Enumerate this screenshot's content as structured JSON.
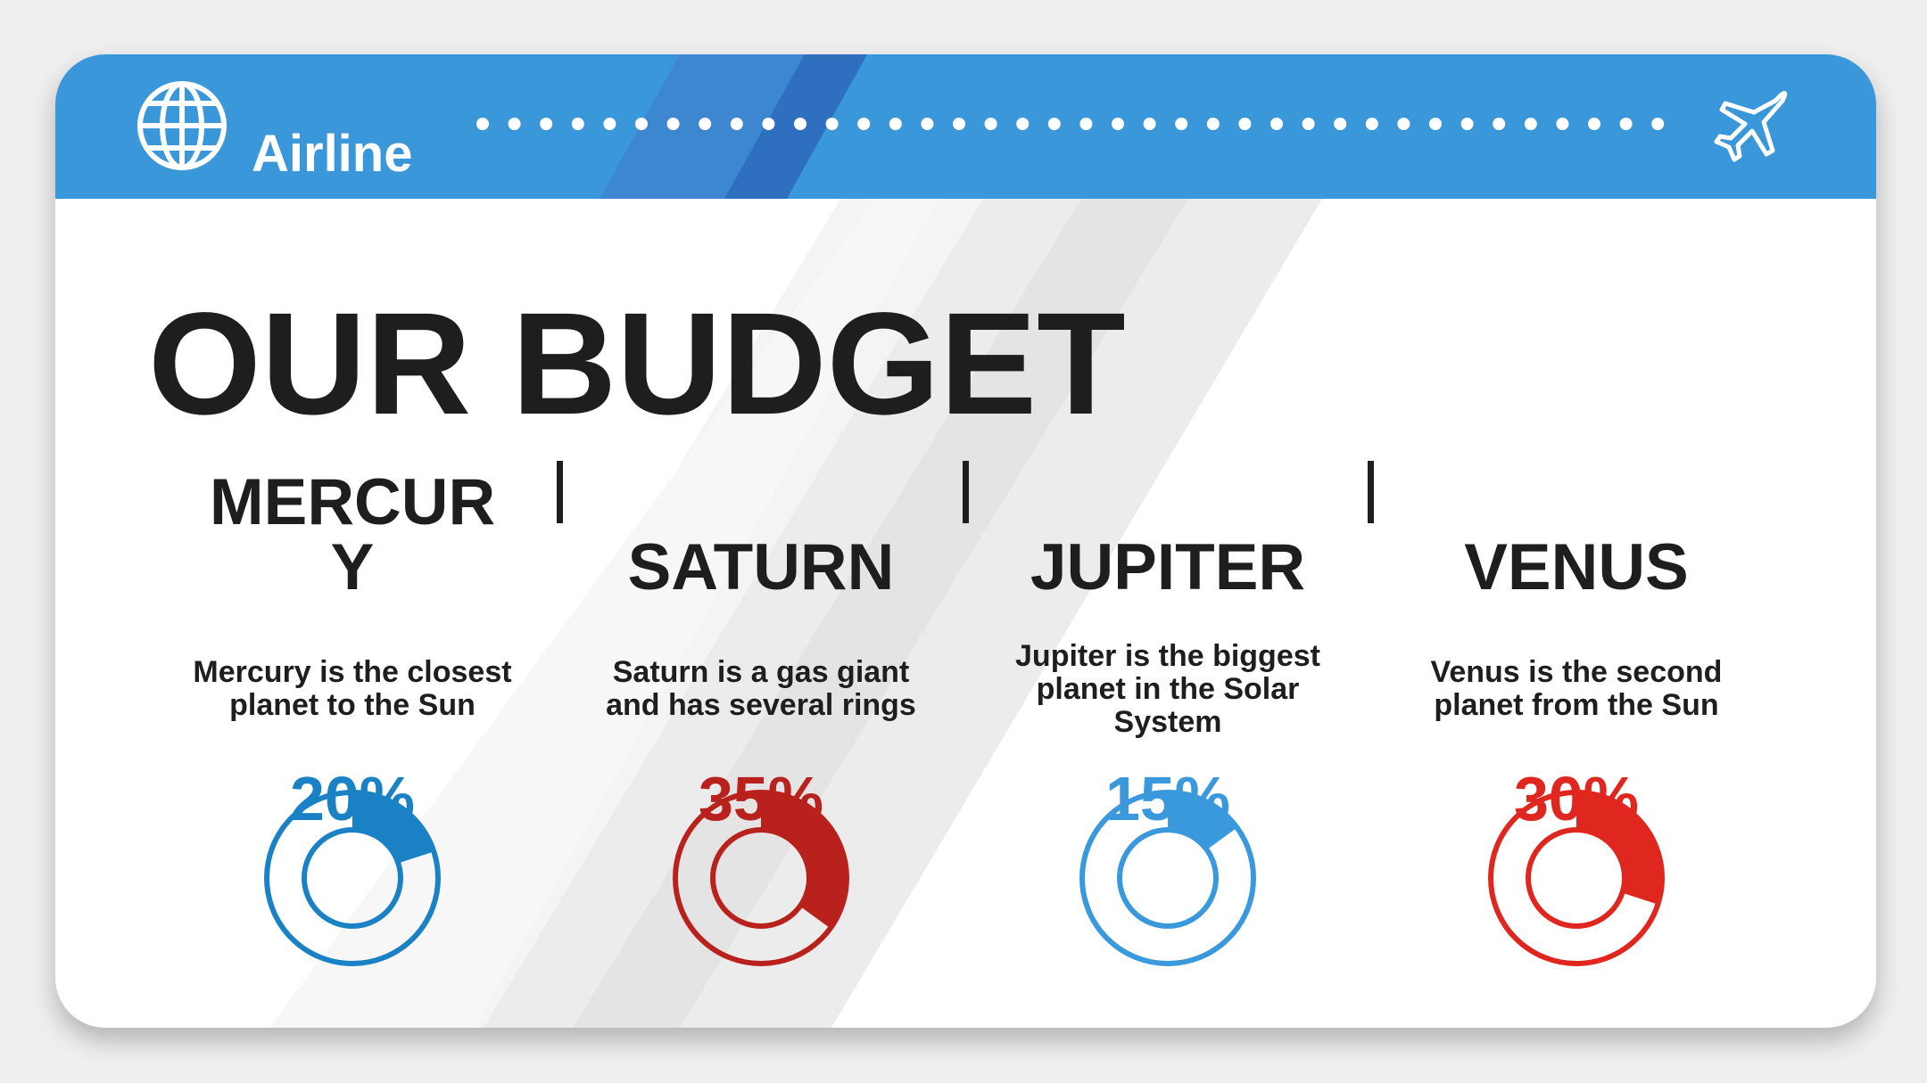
{
  "header": {
    "brand": "Airline"
  },
  "title": "OUR BUDGET",
  "items": [
    {
      "name": "MERCURY",
      "description": "Mercury is the closest planet to the Sun",
      "value": 20,
      "label": "20%",
      "color": "#1a82c4"
    },
    {
      "name": "SATURN",
      "description": "Saturn is a gas giant and has several rings",
      "value": 35,
      "label": "35%",
      "color": "#b8211c"
    },
    {
      "name": "JUPITER",
      "description": "Jupiter is the biggest planet in the Solar System",
      "value": 15,
      "label": "15%",
      "color": "#3a98dc"
    },
    {
      "name": "VENUS",
      "description": "Venus is the second planet from the Sun",
      "value": 30,
      "label": "30%",
      "color": "#e0271f"
    }
  ]
}
